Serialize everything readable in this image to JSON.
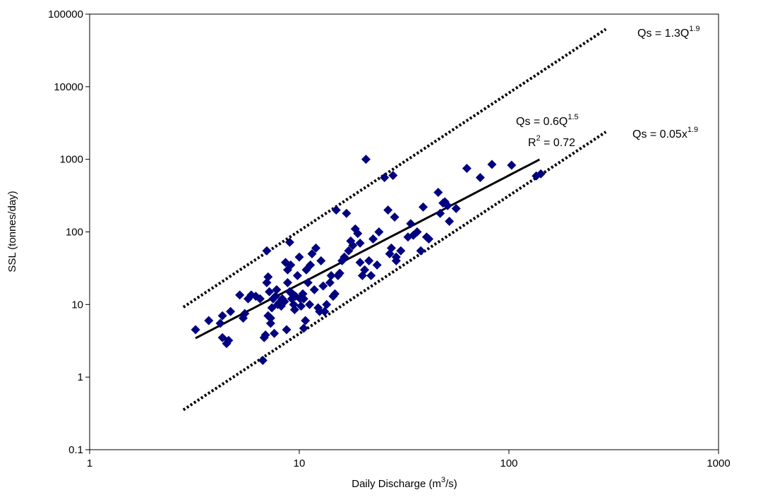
{
  "chart_data": {
    "type": "scatter",
    "xlabel": "Daily Discharge (m³/s)",
    "xlabel_parts": {
      "pre": "Daily Discharge (m",
      "sup": "3",
      "post": "/s)"
    },
    "ylabel": "SSL (tonnes/day)",
    "x_scale": "log",
    "y_scale": "log",
    "xlim": [
      1,
      1000
    ],
    "ylim": [
      0.1,
      100000
    ],
    "x_ticks": [
      "1",
      "10",
      "100",
      "1000"
    ],
    "y_ticks": [
      "0.1",
      "1",
      "10",
      "100",
      "1000",
      "10000",
      "100000"
    ],
    "grid": false,
    "legend": "none",
    "marker_color": "#000080",
    "line_color": "#000000",
    "points": [
      [
        3.2,
        4.5
      ],
      [
        3.7,
        6
      ],
      [
        4.2,
        5.5
      ],
      [
        4.3,
        7
      ],
      [
        4.3,
        3.5
      ],
      [
        4.5,
        2.9
      ],
      [
        4.6,
        3.2
      ],
      [
        4.7,
        8
      ],
      [
        5.2,
        13.5
      ],
      [
        5.4,
        6.5
      ],
      [
        5.5,
        7.5
      ],
      [
        5.7,
        12
      ],
      [
        5.9,
        13.5
      ],
      [
        6.2,
        13
      ],
      [
        6.5,
        12
      ],
      [
        6.7,
        1.7
      ],
      [
        6.8,
        3.5
      ],
      [
        6.9,
        3.8
      ],
      [
        7.0,
        55
      ],
      [
        7.0,
        20
      ],
      [
        7.1,
        24
      ],
      [
        7.1,
        7
      ],
      [
        7.2,
        15
      ],
      [
        7.3,
        5.5
      ],
      [
        7.3,
        6.5
      ],
      [
        7.4,
        9
      ],
      [
        7.5,
        12
      ],
      [
        7.6,
        4
      ],
      [
        7.7,
        13
      ],
      [
        7.8,
        16
      ],
      [
        7.9,
        10
      ],
      [
        8.0,
        10.5
      ],
      [
        8.2,
        9.5
      ],
      [
        8.3,
        12
      ],
      [
        8.5,
        11
      ],
      [
        8.6,
        38
      ],
      [
        8.7,
        4.5
      ],
      [
        8.8,
        20
      ],
      [
        8.8,
        30
      ],
      [
        9.0,
        15
      ],
      [
        9.0,
        72
      ],
      [
        9.1,
        35
      ],
      [
        9.2,
        12
      ],
      [
        9.3,
        14
      ],
      [
        9.4,
        10
      ],
      [
        9.5,
        8.5
      ],
      [
        9.6,
        13
      ],
      [
        9.8,
        25
      ],
      [
        10.0,
        45
      ],
      [
        10.1,
        12
      ],
      [
        10.2,
        9.5
      ],
      [
        10.4,
        14
      ],
      [
        10.5,
        12
      ],
      [
        10.5,
        4.7
      ],
      [
        10.7,
        6
      ],
      [
        10.8,
        30
      ],
      [
        11.0,
        20
      ],
      [
        11.2,
        10
      ],
      [
        11.3,
        35
      ],
      [
        11.5,
        50
      ],
      [
        11.8,
        16
      ],
      [
        12.0,
        60
      ],
      [
        12.3,
        9
      ],
      [
        12.5,
        8
      ],
      [
        12.7,
        40
      ],
      [
        13.0,
        18
      ],
      [
        13.2,
        8
      ],
      [
        13.5,
        10
      ],
      [
        14.0,
        20
      ],
      [
        14.2,
        25
      ],
      [
        14.5,
        13
      ],
      [
        14.8,
        14
      ],
      [
        15.0,
        200
      ],
      [
        15.3,
        25
      ],
      [
        15.6,
        27
      ],
      [
        16.0,
        40
      ],
      [
        16.4,
        45
      ],
      [
        16.8,
        180
      ],
      [
        17.2,
        55
      ],
      [
        17.6,
        75
      ],
      [
        18.0,
        65
      ],
      [
        18.5,
        110
      ],
      [
        19.0,
        95
      ],
      [
        19.5,
        70
      ],
      [
        19.5,
        38
      ],
      [
        20.0,
        25
      ],
      [
        20.5,
        30
      ],
      [
        20.8,
        1000
      ],
      [
        21.5,
        40
      ],
      [
        22.0,
        25
      ],
      [
        22.5,
        80
      ],
      [
        23.5,
        35
      ],
      [
        24.0,
        100
      ],
      [
        25.5,
        560
      ],
      [
        26.5,
        200
      ],
      [
        27.0,
        50
      ],
      [
        27.5,
        60
      ],
      [
        28.0,
        600
      ],
      [
        28.5,
        160
      ],
      [
        29.0,
        45
      ],
      [
        29.0,
        40
      ],
      [
        30.5,
        55
      ],
      [
        33.0,
        85
      ],
      [
        34.0,
        130
      ],
      [
        35.0,
        90
      ],
      [
        36.5,
        100
      ],
      [
        38.0,
        55
      ],
      [
        39.0,
        220
      ],
      [
        40.5,
        85
      ],
      [
        41.5,
        80
      ],
      [
        46.0,
        350
      ],
      [
        47.0,
        180
      ],
      [
        48.5,
        250
      ],
      [
        49.5,
        260
      ],
      [
        51.0,
        230
      ],
      [
        52.0,
        140
      ],
      [
        56.0,
        210
      ],
      [
        63.0,
        750
      ],
      [
        73.0,
        560
      ],
      [
        83.0,
        850
      ],
      [
        103.0,
        830
      ],
      [
        135.0,
        590
      ],
      [
        142.0,
        630
      ]
    ],
    "series": [
      {
        "role": "regression",
        "a": 0.6,
        "b": 1.5,
        "x": [
          3.2,
          140
        ],
        "style": "solid"
      },
      {
        "role": "upper-envelope",
        "a": 1.3,
        "b": 1.9,
        "x": [
          2.8,
          290
        ],
        "style": "dotted"
      },
      {
        "role": "lower-envelope",
        "a": 0.05,
        "b": 1.9,
        "x": [
          2.8,
          290
        ],
        "style": "dotted"
      }
    ],
    "annotations": {
      "upper": {
        "pre": "Qs = 1.3Q",
        "sup": "1.9",
        "post": ""
      },
      "regression": {
        "pre": "Qs = 0.6Q",
        "sup": "1.5",
        "post": ""
      },
      "r2": {
        "pre": "R",
        "sup": "2",
        "post": " = 0.72"
      },
      "lower": {
        "pre": "Qs = 0.05x",
        "sup": "1.9",
        "post": ""
      }
    }
  }
}
